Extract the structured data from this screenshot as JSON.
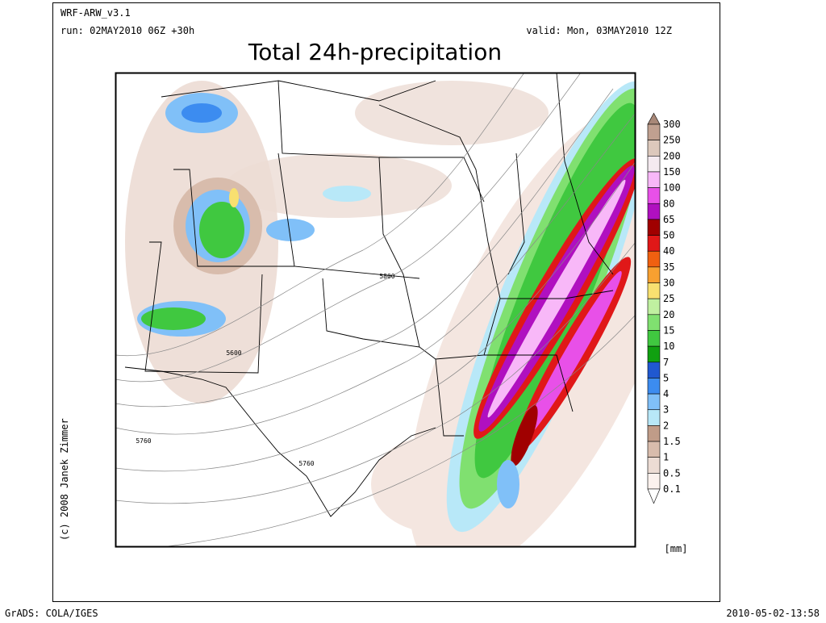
{
  "header": {
    "model": "WRF-ARW_v3.1",
    "run": "run: 02MAY2010 06Z +30h",
    "valid": "valid: Mon, 03MAY2010 12Z",
    "title": "Total 24h-precipitation"
  },
  "colorbar": {
    "unit": "[mm]",
    "labels": [
      "300",
      "250",
      "200",
      "150",
      "100",
      "80",
      "65",
      "50",
      "40",
      "35",
      "30",
      "25",
      "20",
      "15",
      "10",
      "7",
      "5",
      "4",
      "3",
      "2",
      "1.5",
      "1",
      "0.5",
      "0.1"
    ],
    "colors": [
      "#a88878",
      "#c0a090",
      "#dcc8bc",
      "#f4eaf0",
      "#f8b8f8",
      "#e850e8",
      "#b010c0",
      "#a00000",
      "#e01818",
      "#f06010",
      "#f8a030",
      "#f8e070",
      "#c0f0a0",
      "#80e070",
      "#40c840",
      "#10a010",
      "#2058d0",
      "#3c8cf0",
      "#80c0f8",
      "#b8e8f8",
      "#c09c88",
      "#d8bcac",
      "#ecdcd4",
      "#fbf2ee",
      "#ffffff"
    ]
  },
  "contour_labels": [
    "5800",
    "5600",
    "5760",
    "5760"
  ],
  "credit": "(c) 2008 Janek Zimmer",
  "footer": {
    "left": "GrADS: COLA/IGES",
    "right": "2010-05-02-13:58"
  }
}
